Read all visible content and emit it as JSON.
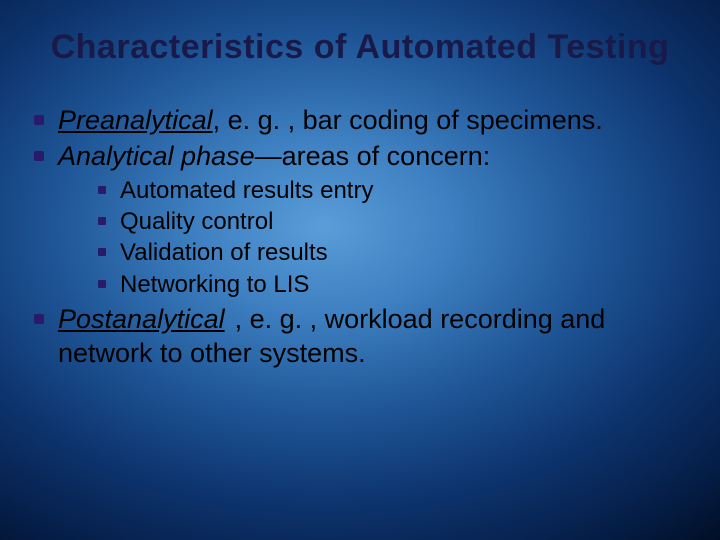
{
  "slide": {
    "title": "Characteristics of Automated Testing",
    "title_color": "#1a1a4a",
    "title_fontsize": 34,
    "body_fontsize_main": 27,
    "body_fontsize_sub": 24,
    "bullet_color": "#2a1a6a",
    "text_color": "#000000",
    "background": {
      "type": "radial-gradient",
      "colors": [
        "#5a9dd9",
        "#3d7fc0",
        "#1e5596",
        "#0d336d",
        "#051e48",
        "#000510"
      ]
    },
    "items": [
      {
        "lead": "Preanalytical",
        "rest": ", e. g. , bar coding of specimens."
      },
      {
        "lead": "Analytical phase",
        "rest": "—areas of concern:",
        "sub": [
          "Automated results entry",
          "Quality control",
          "Validation of results",
          "Networking to LIS"
        ]
      },
      {
        "lead": "Postanalytical",
        "rest": ", e. g. , workload recording and network to other systems."
      }
    ]
  }
}
